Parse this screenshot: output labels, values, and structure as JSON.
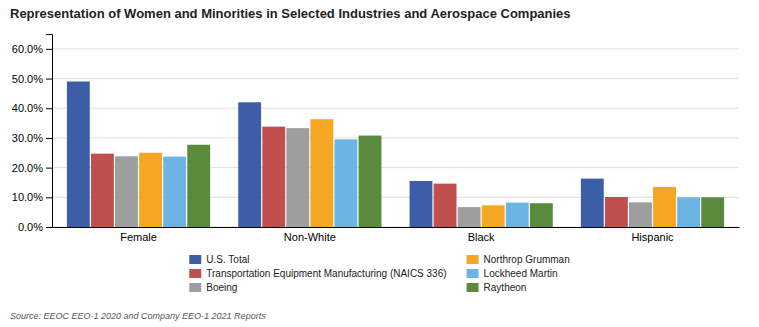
{
  "chart_data": {
    "type": "bar",
    "title": "Representation of Women and Minorities in Selected Industries and Aerospace Companies",
    "categories": [
      "Female",
      "Non-White",
      "Black",
      "Hispanic"
    ],
    "series": [
      {
        "name": "U.S. Total",
        "color": "#3B5EA6",
        "values": [
          0.49,
          0.42,
          0.155,
          0.163
        ]
      },
      {
        "name": "Transportation Equipment Manufacturing (NAICS 336)",
        "color": "#C0504D",
        "values": [
          0.247,
          0.338,
          0.146,
          0.101
        ]
      },
      {
        "name": "Boeing",
        "color": "#9E9E9E",
        "values": [
          0.238,
          0.333,
          0.067,
          0.083
        ]
      },
      {
        "name": "Northrop Grumman",
        "color": "#F5A623",
        "values": [
          0.25,
          0.363,
          0.073,
          0.135
        ]
      },
      {
        "name": "Lockheed Martin",
        "color": "#6CB4E4",
        "values": [
          0.237,
          0.295,
          0.082,
          0.1
        ]
      },
      {
        "name": "Raytheon",
        "color": "#5A8A3C",
        "values": [
          0.277,
          0.308,
          0.08,
          0.1
        ]
      }
    ],
    "ylim": [
      0,
      0.65
    ],
    "yticks": [
      {
        "value": 0.0,
        "label": "0.0%"
      },
      {
        "value": 0.1,
        "label": "10.0%"
      },
      {
        "value": 0.2,
        "label": "20.0%"
      },
      {
        "value": 0.3,
        "label": "30.0%"
      },
      {
        "value": 0.4,
        "label": "40.0%"
      },
      {
        "value": 0.5,
        "label": "50.0%"
      },
      {
        "value": 0.6,
        "label": "60.0%"
      }
    ],
    "grid": true,
    "legend": "bottom",
    "annotations": [
      "Source: EEOC EEO-1 2020 and Company EEO-1 2021 Reports"
    ]
  }
}
